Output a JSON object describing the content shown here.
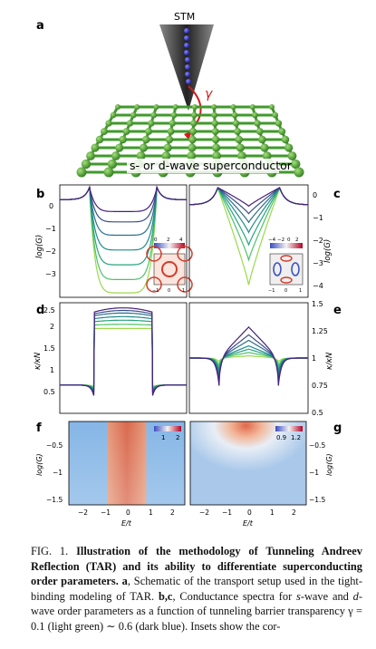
{
  "panel_labels": {
    "a": "a",
    "b": "b",
    "c": "c",
    "d": "d",
    "e": "e",
    "f": "f",
    "g": "g"
  },
  "panel_a": {
    "tip_label": "STM",
    "gamma_label": "γ",
    "substrate_label": "s- or d-wave superconductor"
  },
  "chart_data": [
    {
      "panel": "b",
      "type": "line",
      "xlabel": "",
      "ylabel": "log(G)",
      "ylim": [
        -3.5,
        0.3
      ],
      "yticks": [
        "0",
        "−1",
        "−2",
        "−3"
      ],
      "series_note": "s-wave conductance, gamma 0.1 to 0.6",
      "bottom_levels": [
        -3.35,
        -2.9,
        -2.4,
        -1.9,
        -1.4,
        -0.95,
        -0.6
      ],
      "colors": [
        "#9bd94b",
        "#4cc26a",
        "#27a47e",
        "#208a8c",
        "#2b6f8d",
        "#3a4f8a",
        "#46207a"
      ],
      "inset": {
        "ticks": [
          "0",
          "2",
          "4"
        ],
        "axis": [
          "−1",
          "0",
          "1"
        ]
      }
    },
    {
      "panel": "c",
      "type": "line",
      "ylabel": "log(G)",
      "ylim": [
        -4.1,
        0.4
      ],
      "yticks": [
        "0",
        "−1",
        "−2",
        "−3",
        "−4"
      ],
      "series_note": "d-wave conductance, gamma 0.1 to 0.6",
      "center_levels": [
        -3.6,
        -2.6,
        -2.0,
        -1.5,
        -1.1,
        -0.75,
        -0.45
      ],
      "colors": [
        "#9bd94b",
        "#4cc26a",
        "#27a47e",
        "#208a8c",
        "#2b6f8d",
        "#3a4f8a",
        "#46207a"
      ],
      "inset": {
        "ticks": [
          "−4",
          "−2",
          "0",
          "2"
        ],
        "axis": [
          "−1",
          "0",
          "1"
        ]
      }
    },
    {
      "panel": "d",
      "type": "line",
      "ylabel": "κ/κN",
      "ylim": [
        0.45,
        2.6
      ],
      "yticks": [
        "0.5",
        "1",
        "1.5",
        "2",
        "2.5"
      ],
      "plateau_levels": [
        2.1,
        2.18,
        2.26,
        2.33,
        2.4,
        2.45,
        2.5
      ],
      "colors": [
        "#9bd94b",
        "#4cc26a",
        "#27a47e",
        "#208a8c",
        "#2b6f8d",
        "#3a4f8a",
        "#46207a"
      ]
    },
    {
      "panel": "e",
      "type": "line",
      "ylabel": "κ/κN",
      "ylim": [
        0.5,
        1.5
      ],
      "yticks": [
        "0.5",
        "0.75",
        "1",
        "1.25",
        "1.5"
      ],
      "peak_levels": [
        1.02,
        1.05,
        1.08,
        1.11,
        1.16,
        1.21,
        1.28
      ],
      "colors": [
        "#9bd94b",
        "#4cc26a",
        "#27a47e",
        "#208a8c",
        "#2b6f8d",
        "#3a4f8a",
        "#46207a"
      ]
    },
    {
      "panel": "f",
      "type": "heatmap",
      "xlabel": "E/t",
      "ylabel": "log(G)",
      "xticks": [
        "−2",
        "−1",
        "0",
        "1",
        "2"
      ],
      "yticks": [
        "−0.5",
        "−1",
        "−1.5"
      ],
      "colorbar_ticks": [
        "1",
        "2"
      ]
    },
    {
      "panel": "g",
      "type": "heatmap",
      "xlabel": "E/t",
      "ylabel": "log(G)",
      "xticks": [
        "−2",
        "−1",
        "0",
        "1",
        "2"
      ],
      "yticks": [
        "−0.5",
        "−1",
        "−1.5"
      ],
      "colorbar_ticks": [
        "0.9",
        "1.2"
      ]
    }
  ],
  "caption": {
    "fig_label": "FIG. 1.",
    "title": "Illustration of the methodology of Tunneling Andreev Reflection (TAR) and its ability to differentiate superconducting order parameters.",
    "a_label": "a",
    "a_text": ", Schematic of the transport setup used in the tight-binding modeling of TAR. ",
    "bc_label": "b,c",
    "bc_text_1": ", Conductance spectra for ",
    "s_wave": "s",
    "bc_text_2": "-wave and ",
    "d_wave": "d",
    "bc_text_3": "-wave order parameters as a function of tunneling barrier transparency γ = 0.1 (light green) ∼ 0.6 (dark blue). Insets show the cor-"
  }
}
